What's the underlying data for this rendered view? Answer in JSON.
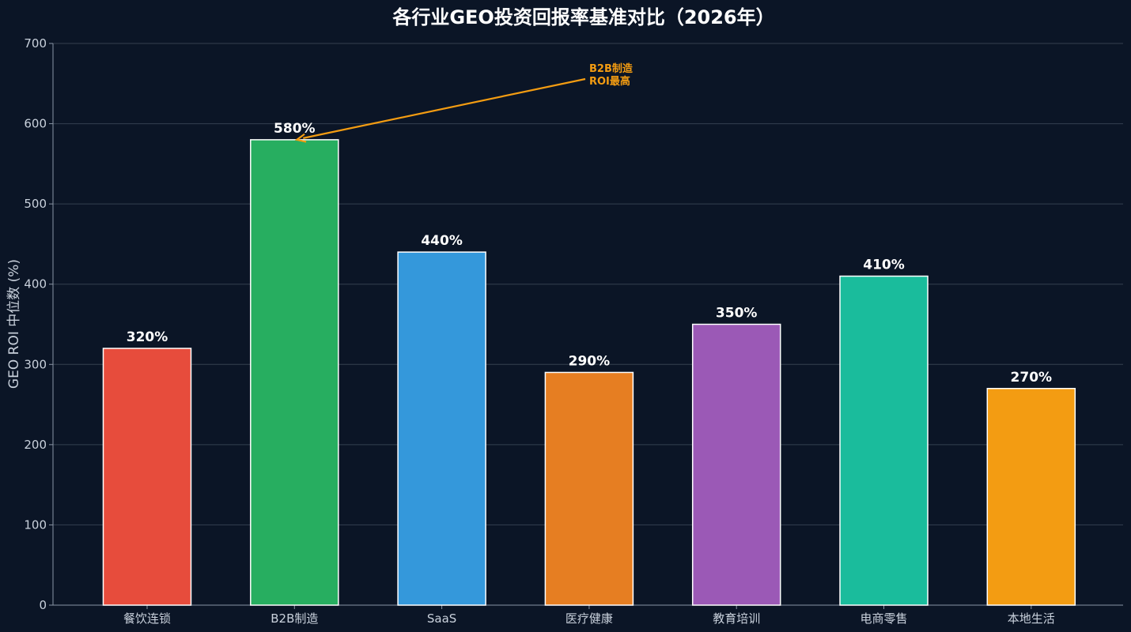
{
  "chart_data": {
    "type": "bar",
    "title": "各行业GEO投资回报率基准对比（2026年）",
    "xlabel": "",
    "ylabel": "GEO ROI 中位数 (%)",
    "ylim": [
      0,
      700
    ],
    "yticks": [
      0,
      100,
      200,
      300,
      400,
      500,
      600,
      700
    ],
    "grid": true,
    "categories": [
      "餐饮连锁",
      "B2B制造",
      "SaaS",
      "医疗健康",
      "教育培训",
      "电商零售",
      "本地生活"
    ],
    "values": [
      320,
      580,
      440,
      290,
      350,
      410,
      270
    ],
    "value_labels": [
      "320%",
      "580%",
      "440%",
      "290%",
      "350%",
      "410%",
      "270%"
    ],
    "colors": [
      "#e74c3c",
      "#27ae60",
      "#3498db",
      "#e67e22",
      "#9b59b6",
      "#1abc9c",
      "#f39c12"
    ],
    "annotation": {
      "lines": [
        "B2B制造",
        "ROI最高"
      ],
      "target_category": "B2B制造",
      "target_value": 580,
      "color": "#f39c12"
    }
  }
}
